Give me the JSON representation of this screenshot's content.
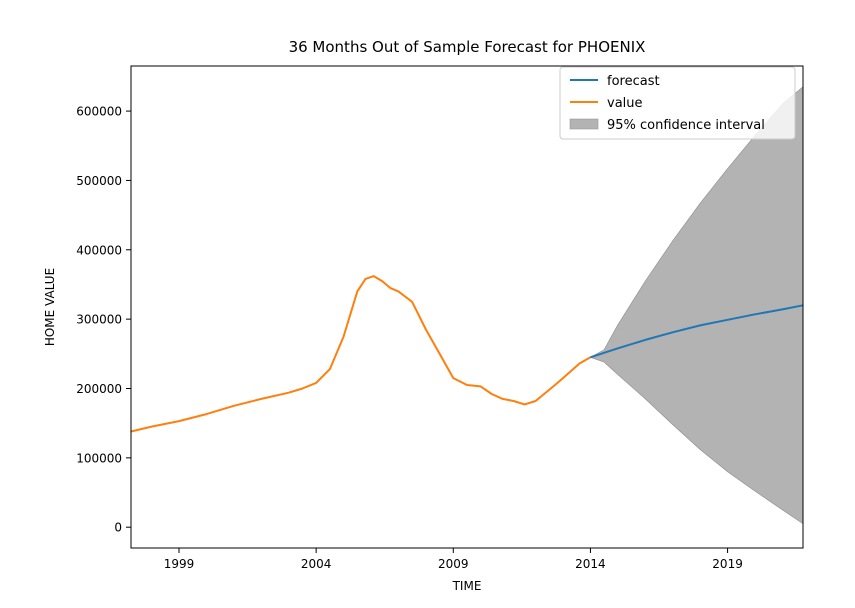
{
  "chart_data": {
    "type": "line",
    "title": "36 Months Out of Sample Forecast for PHOENIX",
    "xlabel": "TIME",
    "ylabel": "HOME VALUE",
    "xlim": [
      1997.25,
      2021.75
    ],
    "ylim": [
      -30000,
      665000
    ],
    "x_ticks": [
      1999,
      2004,
      2009,
      2014,
      2019
    ],
    "x_tick_labels": [
      "1999",
      "2004",
      "2009",
      "2014",
      "2019"
    ],
    "y_ticks": [
      0,
      100000,
      200000,
      300000,
      400000,
      500000,
      600000
    ],
    "y_tick_labels": [
      "0",
      "100000",
      "200000",
      "300000",
      "400000",
      "500000",
      "600000"
    ],
    "grid": false,
    "legend_position": "top-right",
    "colors": {
      "forecast": "#1f77b4",
      "value": "#ff7f0e",
      "ci": "#b3b3b3",
      "ci_edge": "#8c8c8c"
    },
    "series": [
      {
        "name": "value",
        "x": [
          1997.25,
          1998,
          1999,
          2000,
          2001,
          2002,
          2003,
          2003.5,
          2004,
          2004.5,
          2005,
          2005.5,
          2005.8,
          2006.1,
          2006.4,
          2006.7,
          2007,
          2007.5,
          2008,
          2008.5,
          2009,
          2009.5,
          2010,
          2010.4,
          2010.8,
          2011.2,
          2011.6,
          2012,
          2012.4,
          2012.8,
          2013.2,
          2013.6,
          2014
        ],
        "y": [
          138000,
          145000,
          153000,
          163000,
          175000,
          185000,
          194000,
          200000,
          208000,
          228000,
          275000,
          340000,
          358000,
          362000,
          355000,
          345000,
          340000,
          325000,
          285000,
          250000,
          215000,
          205000,
          203000,
          192000,
          185000,
          182000,
          177000,
          182000,
          195000,
          208000,
          222000,
          236000,
          245000
        ]
      },
      {
        "name": "forecast",
        "x": [
          2014,
          2015,
          2016,
          2017,
          2018,
          2019,
          2020,
          2021,
          2021.75
        ],
        "y": [
          245000,
          258000,
          270000,
          281000,
          291000,
          299000,
          307000,
          314000,
          320000
        ]
      },
      {
        "name": "95% confidence interval",
        "x": [
          2014,
          2014.5,
          2015,
          2016,
          2017,
          2018,
          2019,
          2020,
          2021,
          2021.75
        ],
        "lower": [
          245000,
          238000,
          220000,
          185000,
          148000,
          112000,
          80000,
          52000,
          25000,
          5000
        ],
        "upper": [
          245000,
          256000,
          292000,
          355000,
          413000,
          467000,
          517000,
          565000,
          610000,
          635000
        ]
      }
    ],
    "legend": [
      "forecast",
      "value",
      "95% confidence interval"
    ]
  }
}
